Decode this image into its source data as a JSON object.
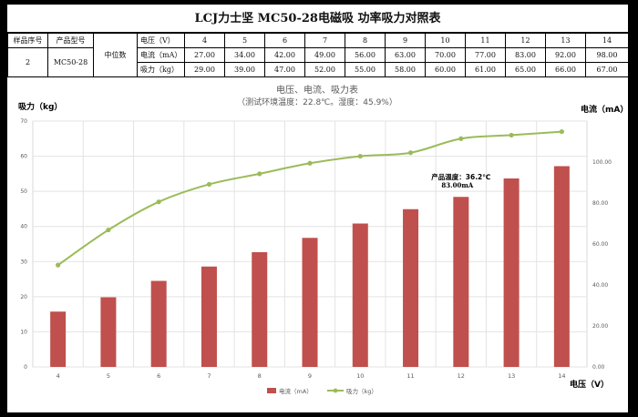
{
  "sheet": {
    "title": "LCJ力士坚 MC50-28电磁吸 功率吸力对照表",
    "headers": {
      "serial": "样品序号",
      "model": "产品型号",
      "position": "中位数"
    },
    "serial": "2",
    "model": "MC50-28",
    "rows": [
      {
        "label": "电压（V）",
        "values": [
          "4",
          "5",
          "6",
          "7",
          "8",
          "9",
          "10",
          "11",
          "12",
          "13",
          "14"
        ]
      },
      {
        "label": "电流（mA）",
        "values": [
          "27.00",
          "34.00",
          "42.00",
          "49.00",
          "56.00",
          "63.00",
          "70.00",
          "77.00",
          "83.00",
          "92.00",
          "98.00"
        ]
      },
      {
        "label": "吸力（kg）",
        "values": [
          "29.00",
          "39.00",
          "47.00",
          "52.00",
          "55.00",
          "58.00",
          "60.00",
          "61.00",
          "65.00",
          "66.00",
          "67.00"
        ]
      }
    ]
  },
  "chart_data": {
    "type": "bar",
    "title": "电压、电流、吸力表",
    "subtitle": "（测试环境温度：22.8℃。湿度：45.9%）",
    "xlabel": "电压（V）",
    "ylabel_left": "吸力（kg）",
    "ylabel_right": "电流（mA）",
    "categories": [
      "4",
      "5",
      "6",
      "7",
      "8",
      "9",
      "10",
      "11",
      "12",
      "13",
      "14"
    ],
    "ylim_left": [
      0,
      70
    ],
    "yticks_left": [
      "0",
      "10",
      "20",
      "30",
      "40",
      "50",
      "60",
      "70"
    ],
    "ylim_right": [
      0,
      120
    ],
    "yticks_right": [
      "0.00",
      "20.00",
      "40.00",
      "60.00",
      "80.00",
      "100.00"
    ],
    "grid": true,
    "legend_position": "bottom",
    "series": [
      {
        "name": "电流（mA）",
        "type": "bar",
        "axis": "right",
        "color": "#c0504d",
        "values": [
          27,
          34,
          42,
          49,
          56,
          63,
          70,
          77,
          83,
          92,
          98
        ]
      },
      {
        "name": "吸力（kg）",
        "type": "line",
        "axis": "left",
        "color": "#9bbb59",
        "values": [
          29,
          39,
          47,
          52,
          55,
          58,
          60,
          61,
          65,
          66,
          67
        ]
      }
    ],
    "annotations": [
      {
        "category": "12",
        "text": "产品温度：36.2℃"
      },
      {
        "category": "12",
        "text": "83.00mA"
      }
    ]
  }
}
